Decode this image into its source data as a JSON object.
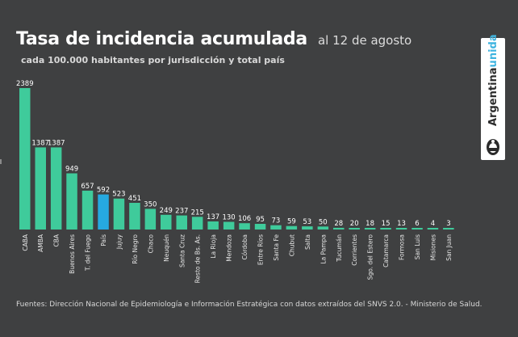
{
  "header": {
    "title": "Tasa de incidencia acumulada",
    "date_label": "al 12 de agosto",
    "subtitle": "cada 100.000 habitantes por jurisdicción y total país"
  },
  "logo": {
    "word1": "Argentina",
    "word2": "unida",
    "color_word2": "#3fb4e0",
    "icon": "coat-of-arms-icon"
  },
  "footer": {
    "source": "Fuentes: Dirección Nacional de Epidemiología e Información Estratégica con datos extraídos del SNVS 2.0. - Ministerio de Salud."
  },
  "colors": {
    "background": "#3f4041",
    "bar": "#3fcb9b",
    "bar_highlight": "#26a9e0"
  },
  "chart_data": {
    "type": "bar",
    "categories": [
      "CABA",
      "AMBA",
      "CBA",
      "Buenos Aires",
      "T. del Fuego",
      "País",
      "Jujuy",
      "Río Negro",
      "Chaco",
      "Neuquén",
      "Santa Cruz",
      "Resto de Bs. As.",
      "La Rioja",
      "Mendoza",
      "Córdoba",
      "Entre Ríos",
      "Santa Fe",
      "Chubut",
      "Salta",
      "La Pampa",
      "Tucumán",
      "Corrientes",
      "Sgo. del Estero",
      "Catamarca",
      "Formosa",
      "San Luis",
      "Misiones",
      "San Juan"
    ],
    "values": [
      2389,
      1387,
      1387,
      949,
      657,
      592,
      523,
      451,
      350,
      249,
      237,
      215,
      137,
      130,
      106,
      95,
      73,
      59,
      53,
      50,
      28,
      20,
      18,
      15,
      13,
      6,
      4,
      3
    ],
    "value_labels": [
      "2389",
      "1387",
      "1387",
      "949",
      "657",
      "592",
      "523",
      "451",
      "350",
      "249",
      "237",
      "215",
      "137",
      "130",
      "106",
      "95",
      "73",
      "59",
      "53",
      "50",
      "28",
      "20",
      "18",
      "15",
      "13",
      "6",
      "4",
      "3"
    ],
    "highlight": "País",
    "title": "Tasa de incidencia acumulada",
    "xlabel": "",
    "ylabel": "",
    "ylim": [
      0,
      2389
    ],
    "grid": false,
    "legend": "none"
  }
}
